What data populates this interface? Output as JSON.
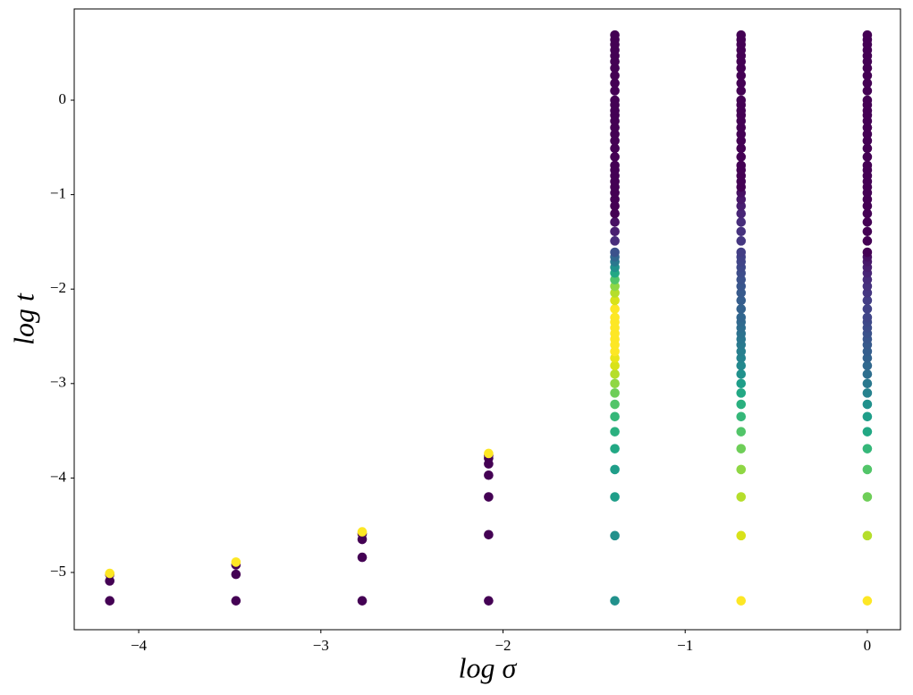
{
  "chart_data": {
    "type": "scatter",
    "xlabel": "log σ",
    "ylabel": "log t",
    "xlim": [
      -4.354,
      0.182
    ],
    "ylim": [
      -5.606,
      0.966
    ],
    "xticks": [
      {
        "value": -4,
        "label": "−4"
      },
      {
        "value": -3,
        "label": "−3"
      },
      {
        "value": -2,
        "label": "−2"
      },
      {
        "value": -1,
        "label": "−1"
      },
      0
    ],
    "yticks": [
      {
        "value": -5,
        "label": "−5"
      },
      {
        "value": -4,
        "label": "−4"
      },
      {
        "value": -3,
        "label": "−3"
      },
      {
        "value": -2,
        "label": "−2"
      },
      {
        "value": -1,
        "label": "−1"
      },
      0
    ],
    "series": [
      {
        "x": [
          -4.159,
          -4.159,
          -4.159,
          -4.159
        ],
        "values": [
          -5.3,
          -5.09,
          -5.02,
          -5.01
        ],
        "colors": [
          "#440154",
          "#440154",
          "#440154",
          "#fde725"
        ]
      },
      {
        "x": [
          -3.466,
          -3.466,
          -3.466,
          -3.466
        ],
        "values": [
          -5.3,
          -5.02,
          -4.92,
          -4.89
        ],
        "colors": [
          "#440154",
          "#440154",
          "#440154",
          "#fde725"
        ]
      },
      {
        "x": [
          -2.773,
          -2.773,
          -2.773,
          -2.773,
          -2.773
        ],
        "values": [
          -5.3,
          -4.84,
          -4.65,
          -4.59,
          -4.57
        ],
        "colors": [
          "#440154",
          "#440154",
          "#440154",
          "#440154",
          "#fde725"
        ]
      },
      {
        "x": [
          -2.079,
          -2.079,
          -2.079,
          -2.079,
          -2.079,
          -2.079,
          -2.079,
          -2.079
        ],
        "values": [
          -5.3,
          -4.6,
          -4.2,
          -3.97,
          -3.85,
          -3.79,
          -3.76,
          -3.74
        ],
        "colors": [
          "#440154",
          "#440154",
          "#440154",
          "#440154",
          "#440154",
          "#440154",
          "#440154",
          "#fde725"
        ]
      },
      {
        "x": [
          -1.386,
          -1.386,
          -1.386,
          -1.386,
          -1.386,
          -1.386,
          -1.386,
          -1.386,
          -1.386,
          -1.386,
          -1.386,
          -1.386,
          -1.386,
          -1.386,
          -1.386,
          -1.386,
          -1.386,
          -1.386,
          -1.386,
          -1.386,
          -1.386,
          -1.386,
          -1.386,
          -1.386,
          -1.386,
          -1.386,
          -1.386,
          -1.386,
          -1.386,
          -1.386,
          -1.386,
          -1.386,
          -1.386,
          -1.386,
          -1.386,
          -1.386,
          -1.386,
          -1.386,
          -1.386,
          -1.386,
          -1.386,
          -1.386,
          -1.386,
          -1.386,
          -1.386,
          -1.386,
          -1.386,
          -1.386,
          -1.386,
          -1.386,
          -1.386,
          -1.386,
          -1.386,
          -1.386,
          -1.386,
          -1.386,
          -1.386,
          -1.386,
          -1.386,
          -1.386,
          -1.386,
          -1.386
        ],
        "values": [
          -5.3,
          -4.61,
          -4.2,
          -3.91,
          -3.69,
          -3.51,
          -3.35,
          -3.22,
          -3.1,
          -3.0,
          -2.9,
          -2.81,
          -2.73,
          -2.66,
          -2.59,
          -2.53,
          -2.47,
          -2.41,
          -2.35,
          -2.3,
          -2.21,
          -2.12,
          -2.04,
          -1.97,
          -1.9,
          -1.83,
          -1.77,
          -1.71,
          -1.66,
          -1.61,
          -1.49,
          -1.39,
          -1.29,
          -1.2,
          -1.12,
          -1.05,
          -0.98,
          -0.92,
          -0.86,
          -0.8,
          -0.74,
          -0.69,
          -0.6,
          -0.51,
          -0.43,
          -0.36,
          -0.29,
          -0.22,
          -0.16,
          -0.11,
          -0.05,
          0.0,
          0.1,
          0.18,
          0.26,
          0.34,
          0.41,
          0.47,
          0.53,
          0.59,
          0.64,
          0.69
        ],
        "colors": [
          "#21918c",
          "#21918c",
          "#1f9e89",
          "#1f9e89",
          "#22a884",
          "#2ab07f",
          "#35b779",
          "#52c569",
          "#6ece58",
          "#8fd744",
          "#b5de2b",
          "#d8e219",
          "#eae51a",
          "#fde725",
          "#fde725",
          "#fde725",
          "#fde725",
          "#fde725",
          "#fde725",
          "#fde725",
          "#fde725",
          "#d8e219",
          "#b5de2b",
          "#8fd744",
          "#52c569",
          "#22a884",
          "#21918c",
          "#2a788e",
          "#31688e",
          "#3b528b",
          "#472d7b",
          "#481f70",
          "#471063",
          "#440154",
          "#440154",
          "#440154",
          "#440154",
          "#440154",
          "#440154",
          "#440154",
          "#440154",
          "#440154",
          "#440154",
          "#440154",
          "#440154",
          "#440154",
          "#440154",
          "#440154",
          "#440154",
          "#440154",
          "#440154",
          "#440154",
          "#440154",
          "#440154",
          "#440154",
          "#440154",
          "#440154",
          "#440154",
          "#440154",
          "#440154",
          "#440154",
          "#440154"
        ]
      },
      {
        "x": [
          -0.693,
          -0.693,
          -0.693,
          -0.693,
          -0.693,
          -0.693,
          -0.693,
          -0.693,
          -0.693,
          -0.693,
          -0.693,
          -0.693,
          -0.693,
          -0.693,
          -0.693,
          -0.693,
          -0.693,
          -0.693,
          -0.693,
          -0.693,
          -0.693,
          -0.693,
          -0.693,
          -0.693,
          -0.693,
          -0.693,
          -0.693,
          -0.693,
          -0.693,
          -0.693,
          -0.693,
          -0.693,
          -0.693,
          -0.693,
          -0.693,
          -0.693,
          -0.693,
          -0.693,
          -0.693,
          -0.693,
          -0.693,
          -0.693,
          -0.693,
          -0.693,
          -0.693,
          -0.693,
          -0.693,
          -0.693,
          -0.693,
          -0.693,
          -0.693,
          -0.693,
          -0.693,
          -0.693,
          -0.693,
          -0.693,
          -0.693,
          -0.693,
          -0.693,
          -0.693,
          -0.693,
          -0.693
        ],
        "values": [
          -5.3,
          -4.61,
          -4.2,
          -3.91,
          -3.69,
          -3.51,
          -3.35,
          -3.22,
          -3.1,
          -3.0,
          -2.9,
          -2.81,
          -2.73,
          -2.66,
          -2.59,
          -2.53,
          -2.47,
          -2.41,
          -2.35,
          -2.3,
          -2.21,
          -2.12,
          -2.04,
          -1.97,
          -1.9,
          -1.83,
          -1.77,
          -1.71,
          -1.66,
          -1.61,
          -1.49,
          -1.39,
          -1.29,
          -1.2,
          -1.12,
          -1.05,
          -0.98,
          -0.92,
          -0.86,
          -0.8,
          -0.74,
          -0.69,
          -0.6,
          -0.51,
          -0.43,
          -0.36,
          -0.29,
          -0.22,
          -0.16,
          -0.11,
          -0.05,
          0.0,
          0.1,
          0.18,
          0.26,
          0.34,
          0.41,
          0.47,
          0.53,
          0.59,
          0.64,
          0.69
        ],
        "colors": [
          "#fde725",
          "#d8e219",
          "#b5de2b",
          "#8fd744",
          "#6ece58",
          "#52c569",
          "#35b779",
          "#2ab07f",
          "#22a884",
          "#1f9e89",
          "#21918c",
          "#23898e",
          "#25838e",
          "#277f8e",
          "#297a8e",
          "#2a768e",
          "#2c728e",
          "#2e6e8e",
          "#306a8e",
          "#31668e",
          "#33628d",
          "#355e8d",
          "#375a8c",
          "#39568c",
          "#3b528b",
          "#3d4d8a",
          "#3e4989",
          "#404588",
          "#414287",
          "#433e85",
          "#453781",
          "#46327e",
          "#472d7b",
          "#482576",
          "#481f70",
          "#48186a",
          "#471063",
          "#440154",
          "#440154",
          "#440154",
          "#440154",
          "#440154",
          "#440154",
          "#440154",
          "#440154",
          "#440154",
          "#440154",
          "#440154",
          "#440154",
          "#440154",
          "#440154",
          "#440154",
          "#440154",
          "#440154",
          "#440154",
          "#440154",
          "#440154",
          "#440154",
          "#440154",
          "#440154",
          "#440154",
          "#440154"
        ]
      },
      {
        "x": [
          0,
          0,
          0,
          0,
          0,
          0,
          0,
          0,
          0,
          0,
          0,
          0,
          0,
          0,
          0,
          0,
          0,
          0,
          0,
          0,
          0,
          0,
          0,
          0,
          0,
          0,
          0,
          0,
          0,
          0,
          0,
          0,
          0,
          0,
          0,
          0,
          0,
          0,
          0,
          0,
          0,
          0,
          0,
          0,
          0,
          0,
          0,
          0,
          0,
          0,
          0,
          0,
          0,
          0,
          0,
          0,
          0,
          0,
          0,
          0,
          0,
          0
        ],
        "values": [
          -5.3,
          -4.61,
          -4.2,
          -3.91,
          -3.69,
          -3.51,
          -3.35,
          -3.22,
          -3.1,
          -3.0,
          -2.9,
          -2.81,
          -2.73,
          -2.66,
          -2.59,
          -2.53,
          -2.47,
          -2.41,
          -2.35,
          -2.3,
          -2.21,
          -2.12,
          -2.04,
          -1.97,
          -1.9,
          -1.83,
          -1.77,
          -1.71,
          -1.66,
          -1.61,
          -1.49,
          -1.39,
          -1.29,
          -1.2,
          -1.12,
          -1.05,
          -0.98,
          -0.92,
          -0.86,
          -0.8,
          -0.74,
          -0.69,
          -0.6,
          -0.51,
          -0.43,
          -0.36,
          -0.29,
          -0.22,
          -0.16,
          -0.11,
          -0.05,
          0.0,
          0.1,
          0.18,
          0.26,
          0.34,
          0.41,
          0.47,
          0.53,
          0.59,
          0.64,
          0.69
        ],
        "colors": [
          "#fde725",
          "#b5de2b",
          "#6ece58",
          "#52c569",
          "#35b779",
          "#22a884",
          "#1f9e89",
          "#21918c",
          "#26828e",
          "#2a788e",
          "#2e6e8e",
          "#31688e",
          "#33628d",
          "#355e8d",
          "#375a8c",
          "#39568c",
          "#3b528b",
          "#3d4d8a",
          "#3e4989",
          "#404588",
          "#414287",
          "#433e85",
          "#453781",
          "#46327e",
          "#472d7b",
          "#482576",
          "#481f70",
          "#48186a",
          "#471063",
          "#440154",
          "#440154",
          "#440154",
          "#440154",
          "#440154",
          "#440154",
          "#440154",
          "#440154",
          "#440154",
          "#440154",
          "#440154",
          "#440154",
          "#440154",
          "#440154",
          "#440154",
          "#440154",
          "#440154",
          "#440154",
          "#440154",
          "#440154",
          "#440154",
          "#440154",
          "#440154",
          "#440154",
          "#440154",
          "#440154",
          "#440154",
          "#440154",
          "#440154",
          "#440154",
          "#440154",
          "#440154",
          "#440154"
        ]
      }
    ]
  }
}
